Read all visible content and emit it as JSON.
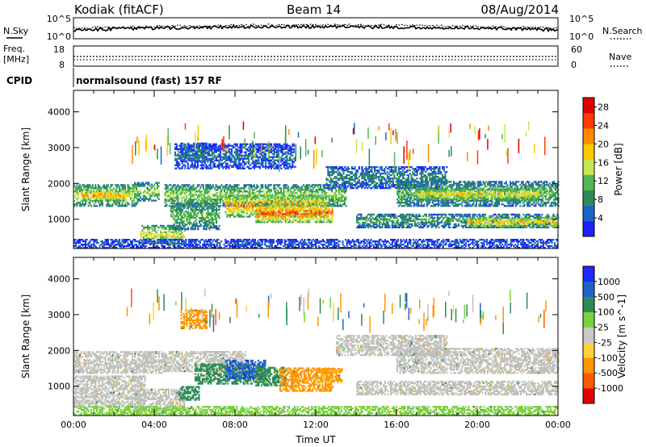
{
  "header": {
    "station": "Kodiak (fitACF)",
    "beam": "Beam 14",
    "date": "08/Aug/2014"
  },
  "top_panels": {
    "nsky_label": "N.Sky",
    "nsearch_label": "N.Search",
    "noise_ticks_left": [
      "10^5",
      "10^0"
    ],
    "noise_ticks_right": [
      "10^5",
      "10^0"
    ],
    "freq_label": "Freq.",
    "freq_unit": "[MHz]",
    "freq_ticks": [
      "18",
      "8"
    ],
    "nave_label": "Nave",
    "nave_ticks": [
      "60",
      "0"
    ],
    "cpid_label": "CPID",
    "cpid_value": "normalsound (fast) 157 RF"
  },
  "colors": {
    "power": [
      "#1e1eff",
      "#1e64c8",
      "#2e8b57",
      "#4fb84f",
      "#c8e650",
      "#ffc800",
      "#ff8c00",
      "#ff3c00",
      "#e00000"
    ],
    "velocity": [
      "#1e28ff",
      "#1e64c8",
      "#2e8b57",
      "#78d23c",
      "#c8c8c8",
      "#ffd23c",
      "#ff9600",
      "#ff5a00",
      "#e00000"
    ],
    "ground_scatter": "#c0c0bc"
  },
  "chart_data": [
    {
      "type": "heatmap",
      "name": "power",
      "xlabel": "",
      "ylabel": "Slant Range [km]",
      "xlim": [
        0,
        24
      ],
      "ylim": [
        180,
        4600
      ],
      "yticks": [
        "1000",
        "2000",
        "3000",
        "4000"
      ],
      "colorbar_label": "Power [dB]",
      "colorbar_ticks": [
        "4",
        "8",
        "12",
        "16",
        "20",
        "24",
        "28"
      ],
      "colorbar_range": [
        0,
        30
      ],
      "regions": [
        {
          "t": [
            0.0,
            3.2
          ],
          "r": [
            1350,
            1950
          ],
          "level": 16
        },
        {
          "t": [
            0.4,
            2.6
          ],
          "r": [
            1500,
            1800
          ],
          "level": 22
        },
        {
          "t": [
            3.0,
            4.2
          ],
          "r": [
            1500,
            2000
          ],
          "level": 14
        },
        {
          "t": [
            3.3,
            5.5
          ],
          "r": [
            300,
            800
          ],
          "level": 17
        },
        {
          "t": [
            4.8,
            7.2
          ],
          "r": [
            700,
            1450
          ],
          "level": 12
        },
        {
          "t": [
            5.3,
            6.6
          ],
          "r": [
            2600,
            3100
          ],
          "level": 8
        },
        {
          "t": [
            4.5,
            13.5
          ],
          "r": [
            1350,
            1950
          ],
          "level": 14
        },
        {
          "t": [
            7.5,
            12.5
          ],
          "r": [
            1050,
            1650
          ],
          "level": 22
        },
        {
          "t": [
            9.0,
            12.8
          ],
          "r": [
            900,
            1400
          ],
          "level": 25
        },
        {
          "t": [
            5.0,
            11.0
          ],
          "r": [
            2400,
            3100
          ],
          "level": 6
        },
        {
          "t": [
            12.5,
            18.5
          ],
          "r": [
            1850,
            2450
          ],
          "level": 8
        },
        {
          "t": [
            16.0,
            24.0
          ],
          "r": [
            1350,
            2050
          ],
          "level": 12
        },
        {
          "t": [
            17.0,
            23.0
          ],
          "r": [
            1500,
            1850
          ],
          "level": 18
        },
        {
          "t": [
            14.0,
            24.0
          ],
          "r": [
            750,
            1150
          ],
          "level": 10
        },
        {
          "t": [
            19.5,
            24.0
          ],
          "r": [
            750,
            1050
          ],
          "level": 20
        },
        {
          "t": [
            0.0,
            24.0
          ],
          "r": [
            180,
            420
          ],
          "level": 5
        }
      ]
    },
    {
      "type": "heatmap",
      "name": "velocity",
      "xlabel": "Time UT",
      "ylabel": "Slant Range [km]",
      "xlim": [
        0,
        24
      ],
      "ylim": [
        180,
        4600
      ],
      "xticks": [
        "00:00",
        "04:00",
        "08:00",
        "12:00",
        "16:00",
        "20:00",
        "00:00"
      ],
      "yticks": [
        "1000",
        "2000",
        "3000",
        "4000"
      ],
      "colorbar_label": "Velocity [m s^-1]",
      "colorbar_ticks": [
        "1000",
        "500",
        "100",
        "25",
        "-25",
        "-100",
        "-500",
        "-1000"
      ],
      "regions": [
        {
          "t": [
            0.0,
            4.5
          ],
          "r": [
            1350,
            1950
          ],
          "v": 0
        },
        {
          "t": [
            0.0,
            3.5
          ],
          "r": [
            400,
            1300
          ],
          "v": 0
        },
        {
          "t": [
            3.0,
            5.5
          ],
          "r": [
            300,
            900
          ],
          "v": 0
        },
        {
          "t": [
            4.5,
            8.5
          ],
          "r": [
            1400,
            1950
          ],
          "v": 0
        },
        {
          "t": [
            6.0,
            9.5
          ],
          "r": [
            1050,
            1600
          ],
          "v": 350
        },
        {
          "t": [
            7.5,
            9.5
          ],
          "r": [
            1200,
            1700
          ],
          "v": 800
        },
        {
          "t": [
            9.0,
            10.5
          ],
          "r": [
            1000,
            1500
          ],
          "v": 150
        },
        {
          "t": [
            10.2,
            12.8
          ],
          "r": [
            850,
            1500
          ],
          "v": -300
        },
        {
          "t": [
            12.0,
            13.3
          ],
          "r": [
            1100,
            1500
          ],
          "v": -120
        },
        {
          "t": [
            5.2,
            6.2
          ],
          "r": [
            600,
            1000
          ],
          "v": 250
        },
        {
          "t": [
            5.3,
            6.6
          ],
          "r": [
            2600,
            3100
          ],
          "v": -150
        },
        {
          "t": [
            13.0,
            18.5
          ],
          "r": [
            1850,
            2400
          ],
          "v": 0
        },
        {
          "t": [
            16.0,
            24.0
          ],
          "r": [
            1350,
            2050
          ],
          "v": 0
        },
        {
          "t": [
            14.0,
            24.0
          ],
          "r": [
            750,
            1150
          ],
          "v": 0
        },
        {
          "t": [
            0.0,
            24.0
          ],
          "r": [
            180,
            420
          ],
          "v": 40
        }
      ]
    }
  ]
}
